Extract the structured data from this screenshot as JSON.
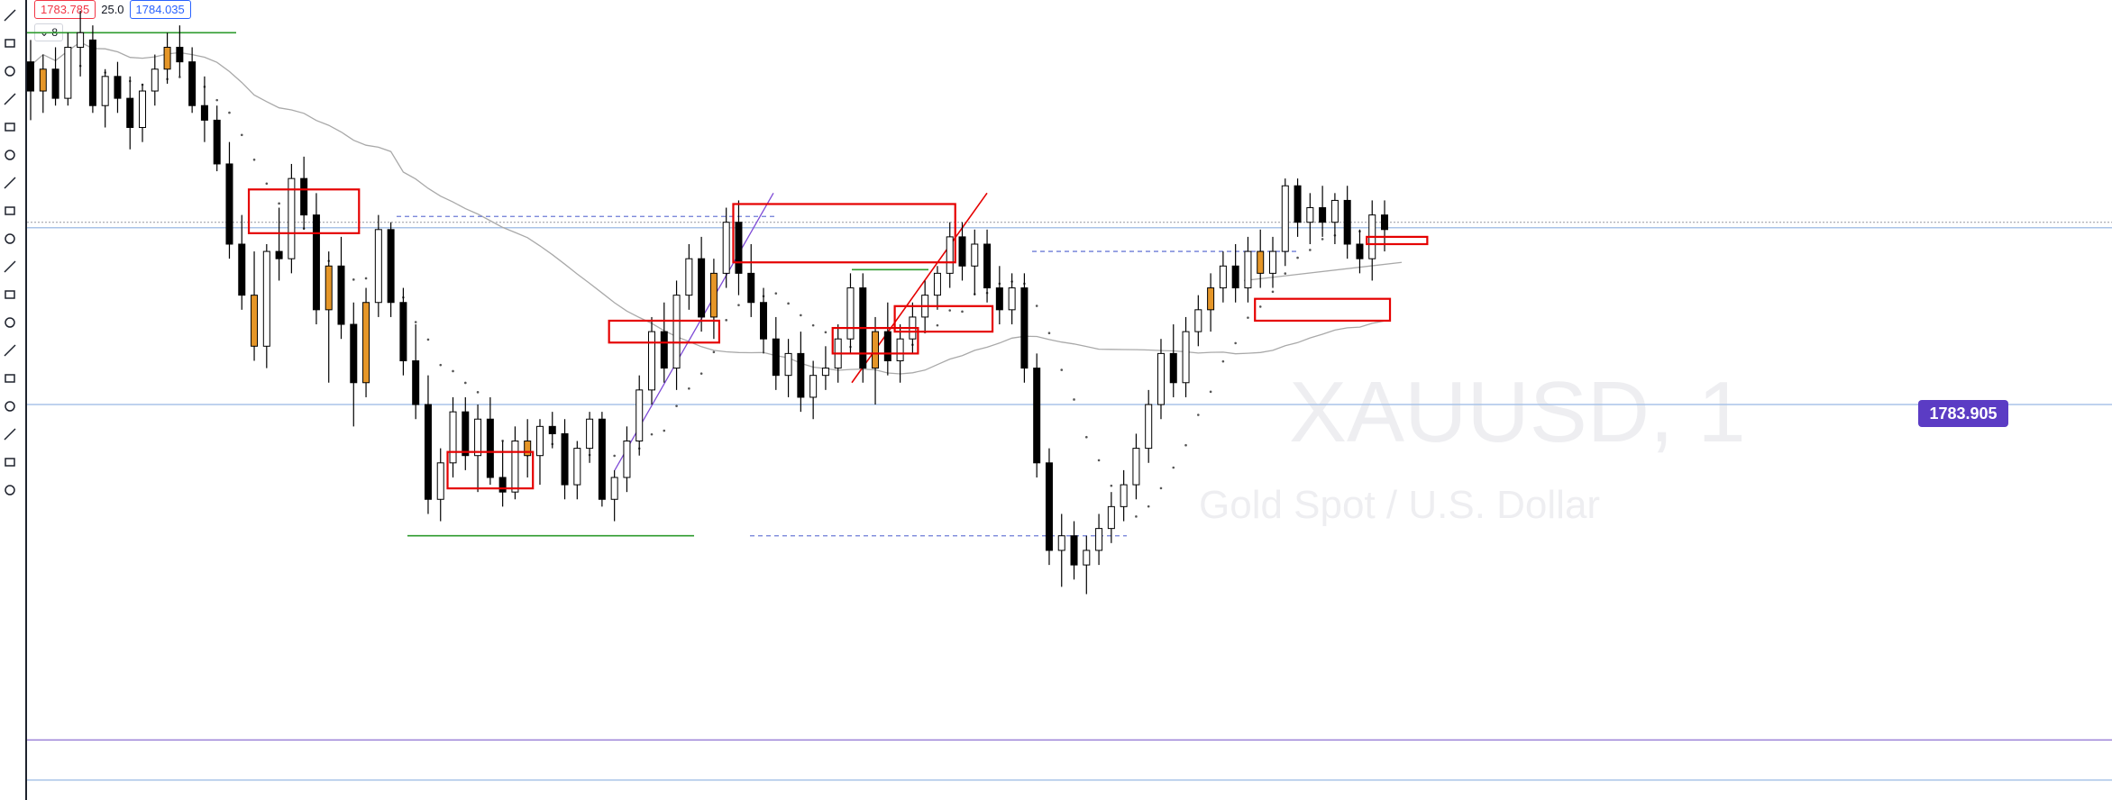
{
  "header": {
    "bid": "1783.785",
    "spread": "25.0",
    "ask": "1784.035",
    "collapse_label": "⌄ 8"
  },
  "toolbar": {
    "tools": [
      "crosshair-icon",
      "trend-line-icon",
      "fib-icon",
      "brush-icon",
      "arrow-icon",
      "rectangle-icon",
      "pen-icon",
      "text-icon",
      "pattern-icon",
      "prediction-icon",
      "ruler-icon",
      "zoom-icon",
      "magnet-icon",
      "lock-drawing-icon",
      "lock-icon",
      "eye-icon",
      "link-icon",
      "trash-icon"
    ]
  },
  "watermark": {
    "symbol": "XAUUSD, 1",
    "description": "Gold Spot / U.S. Dollar"
  },
  "colors": {
    "up_candle": "#ffffff",
    "down_candle": "#000000",
    "highlight_candle": "#e59628",
    "zone": "#e50000",
    "support_line": "#2e9b2e",
    "ma_line": "#a9a9a9",
    "level_blue": "#aac4e8",
    "level_purple": "#9c82d8",
    "price_tag": "#5b3cc4"
  },
  "chart_data": {
    "type": "candlestick",
    "symbol": "XAUUSD",
    "timeframe": "1",
    "last_price": "1783.905",
    "ylim": [
      1776.35,
      1786.0
    ],
    "levels": [
      {
        "name": "resistance",
        "value": 1784.0
      },
      {
        "name": "support-1",
        "value": 1781.5
      },
      {
        "name": "support-2",
        "value": 1776.9
      },
      {
        "name": "support-3",
        "value": 1776.35
      }
    ],
    "candles": [
      {
        "o": 1786.2,
        "h": 1786.5,
        "l": 1785.4,
        "c": 1785.8
      },
      {
        "o": 1785.8,
        "h": 1786.3,
        "l": 1785.5,
        "c": 1786.1
      },
      {
        "o": 1786.1,
        "h": 1786.4,
        "l": 1785.6,
        "c": 1785.7
      },
      {
        "o": 1785.7,
        "h": 1786.6,
        "l": 1785.6,
        "c": 1786.4
      },
      {
        "o": 1786.4,
        "h": 1786.9,
        "l": 1786.0,
        "c": 1786.6
      },
      {
        "o": 1786.5,
        "h": 1786.7,
        "l": 1785.5,
        "c": 1785.6
      },
      {
        "o": 1785.6,
        "h": 1786.1,
        "l": 1785.3,
        "c": 1786.0
      },
      {
        "o": 1786.0,
        "h": 1786.2,
        "l": 1785.5,
        "c": 1785.7
      },
      {
        "o": 1785.7,
        "h": 1786.0,
        "l": 1785.0,
        "c": 1785.3
      },
      {
        "o": 1785.3,
        "h": 1785.9,
        "l": 1785.1,
        "c": 1785.8
      },
      {
        "o": 1785.8,
        "h": 1786.3,
        "l": 1785.6,
        "c": 1786.1
      },
      {
        "o": 1786.1,
        "h": 1786.6,
        "l": 1785.9,
        "c": 1786.4
      },
      {
        "o": 1786.4,
        "h": 1786.7,
        "l": 1786.0,
        "c": 1786.2
      },
      {
        "o": 1786.2,
        "h": 1786.4,
        "l": 1785.5,
        "c": 1785.6
      },
      {
        "o": 1785.6,
        "h": 1786.0,
        "l": 1785.1,
        "c": 1785.4
      },
      {
        "o": 1785.4,
        "h": 1785.6,
        "l": 1784.7,
        "c": 1784.8
      },
      {
        "o": 1784.8,
        "h": 1785.1,
        "l": 1783.5,
        "c": 1783.7
      },
      {
        "o": 1783.7,
        "h": 1784.1,
        "l": 1782.8,
        "c": 1783.0
      },
      {
        "o": 1783.0,
        "h": 1783.6,
        "l": 1782.1,
        "c": 1782.3
      },
      {
        "o": 1782.3,
        "h": 1783.7,
        "l": 1782.0,
        "c": 1783.6
      },
      {
        "o": 1783.6,
        "h": 1784.2,
        "l": 1783.2,
        "c": 1783.5
      },
      {
        "o": 1783.5,
        "h": 1784.8,
        "l": 1783.3,
        "c": 1784.6
      },
      {
        "o": 1784.6,
        "h": 1784.9,
        "l": 1783.9,
        "c": 1784.1
      },
      {
        "o": 1784.1,
        "h": 1784.4,
        "l": 1782.6,
        "c": 1782.8
      },
      {
        "o": 1782.8,
        "h": 1783.6,
        "l": 1781.8,
        "c": 1783.4
      },
      {
        "o": 1783.4,
        "h": 1783.8,
        "l": 1782.4,
        "c": 1782.6
      },
      {
        "o": 1782.6,
        "h": 1782.9,
        "l": 1781.2,
        "c": 1781.8
      },
      {
        "o": 1781.8,
        "h": 1783.1,
        "l": 1781.6,
        "c": 1782.9
      },
      {
        "o": 1782.9,
        "h": 1784.1,
        "l": 1782.7,
        "c": 1783.9
      },
      {
        "o": 1783.9,
        "h": 1784.0,
        "l": 1782.7,
        "c": 1782.9
      },
      {
        "o": 1782.9,
        "h": 1783.1,
        "l": 1781.9,
        "c": 1782.1
      },
      {
        "o": 1782.1,
        "h": 1782.6,
        "l": 1781.3,
        "c": 1781.5
      },
      {
        "o": 1781.5,
        "h": 1781.9,
        "l": 1780.0,
        "c": 1780.2
      },
      {
        "o": 1780.2,
        "h": 1780.9,
        "l": 1779.9,
        "c": 1780.7
      },
      {
        "o": 1780.7,
        "h": 1781.6,
        "l": 1780.5,
        "c": 1781.4
      },
      {
        "o": 1781.4,
        "h": 1781.6,
        "l": 1780.6,
        "c": 1780.8
      },
      {
        "o": 1780.8,
        "h": 1781.5,
        "l": 1780.3,
        "c": 1781.3
      },
      {
        "o": 1781.3,
        "h": 1781.6,
        "l": 1780.4,
        "c": 1780.5
      },
      {
        "o": 1780.5,
        "h": 1781.0,
        "l": 1780.1,
        "c": 1780.3
      },
      {
        "o": 1780.3,
        "h": 1781.2,
        "l": 1780.2,
        "c": 1781.0
      },
      {
        "o": 1781.0,
        "h": 1781.3,
        "l": 1780.5,
        "c": 1780.8
      },
      {
        "o": 1780.8,
        "h": 1781.3,
        "l": 1780.4,
        "c": 1781.2
      },
      {
        "o": 1781.2,
        "h": 1781.4,
        "l": 1780.9,
        "c": 1781.1
      },
      {
        "o": 1781.1,
        "h": 1781.3,
        "l": 1780.2,
        "c": 1780.4
      },
      {
        "o": 1780.4,
        "h": 1781.0,
        "l": 1780.2,
        "c": 1780.9
      },
      {
        "o": 1780.9,
        "h": 1781.4,
        "l": 1780.7,
        "c": 1781.3
      },
      {
        "o": 1781.3,
        "h": 1781.4,
        "l": 1780.1,
        "c": 1780.2
      },
      {
        "o": 1780.2,
        "h": 1780.6,
        "l": 1779.9,
        "c": 1780.5
      },
      {
        "o": 1780.5,
        "h": 1781.2,
        "l": 1780.3,
        "c": 1781.0
      },
      {
        "o": 1781.0,
        "h": 1781.9,
        "l": 1780.8,
        "c": 1781.7
      },
      {
        "o": 1781.7,
        "h": 1782.7,
        "l": 1781.5,
        "c": 1782.5
      },
      {
        "o": 1782.5,
        "h": 1782.9,
        "l": 1781.8,
        "c": 1782.0
      },
      {
        "o": 1782.0,
        "h": 1783.2,
        "l": 1781.7,
        "c": 1783.0
      },
      {
        "o": 1783.0,
        "h": 1783.7,
        "l": 1782.8,
        "c": 1783.5
      },
      {
        "o": 1783.5,
        "h": 1783.8,
        "l": 1782.5,
        "c": 1782.7
      },
      {
        "o": 1782.7,
        "h": 1783.5,
        "l": 1782.4,
        "c": 1783.3
      },
      {
        "o": 1783.3,
        "h": 1784.2,
        "l": 1783.1,
        "c": 1784.0
      },
      {
        "o": 1784.0,
        "h": 1784.3,
        "l": 1783.0,
        "c": 1783.3
      },
      {
        "o": 1783.3,
        "h": 1783.7,
        "l": 1782.7,
        "c": 1782.9
      },
      {
        "o": 1782.9,
        "h": 1783.1,
        "l": 1782.2,
        "c": 1782.4
      },
      {
        "o": 1782.4,
        "h": 1782.7,
        "l": 1781.7,
        "c": 1781.9
      },
      {
        "o": 1781.9,
        "h": 1782.4,
        "l": 1781.6,
        "c": 1782.2
      },
      {
        "o": 1782.2,
        "h": 1782.5,
        "l": 1781.4,
        "c": 1781.6
      },
      {
        "o": 1781.6,
        "h": 1782.1,
        "l": 1781.3,
        "c": 1781.9
      },
      {
        "o": 1781.9,
        "h": 1782.3,
        "l": 1781.7,
        "c": 1782.0
      },
      {
        "o": 1782.0,
        "h": 1782.6,
        "l": 1781.8,
        "c": 1782.4
      },
      {
        "o": 1782.4,
        "h": 1783.3,
        "l": 1782.2,
        "c": 1783.1
      },
      {
        "o": 1783.1,
        "h": 1783.3,
        "l": 1781.8,
        "c": 1782.0
      },
      {
        "o": 1782.0,
        "h": 1782.7,
        "l": 1781.5,
        "c": 1782.5
      },
      {
        "o": 1782.5,
        "h": 1782.9,
        "l": 1781.9,
        "c": 1782.1
      },
      {
        "o": 1782.1,
        "h": 1782.6,
        "l": 1781.8,
        "c": 1782.4
      },
      {
        "o": 1782.4,
        "h": 1782.9,
        "l": 1782.2,
        "c": 1782.7
      },
      {
        "o": 1782.7,
        "h": 1783.2,
        "l": 1782.5,
        "c": 1783.0
      },
      {
        "o": 1783.0,
        "h": 1783.4,
        "l": 1782.8,
        "c": 1783.3
      },
      {
        "o": 1783.3,
        "h": 1784.0,
        "l": 1783.1,
        "c": 1783.8
      },
      {
        "o": 1783.8,
        "h": 1784.0,
        "l": 1783.2,
        "c": 1783.4
      },
      {
        "o": 1783.4,
        "h": 1783.9,
        "l": 1783.0,
        "c": 1783.7
      },
      {
        "o": 1783.7,
        "h": 1783.9,
        "l": 1782.9,
        "c": 1783.1
      },
      {
        "o": 1783.1,
        "h": 1783.4,
        "l": 1782.6,
        "c": 1782.8
      },
      {
        "o": 1782.8,
        "h": 1783.3,
        "l": 1782.6,
        "c": 1783.1
      },
      {
        "o": 1783.1,
        "h": 1783.3,
        "l": 1781.8,
        "c": 1782.0
      },
      {
        "o": 1782.0,
        "h": 1782.2,
        "l": 1780.5,
        "c": 1780.7
      },
      {
        "o": 1780.7,
        "h": 1780.9,
        "l": 1779.3,
        "c": 1779.5
      },
      {
        "o": 1779.5,
        "h": 1780.0,
        "l": 1779.0,
        "c": 1779.7
      },
      {
        "o": 1779.7,
        "h": 1779.9,
        "l": 1779.1,
        "c": 1779.3
      },
      {
        "o": 1779.3,
        "h": 1779.7,
        "l": 1778.9,
        "c": 1779.5
      },
      {
        "o": 1779.5,
        "h": 1780.0,
        "l": 1779.3,
        "c": 1779.8
      },
      {
        "o": 1779.8,
        "h": 1780.3,
        "l": 1779.6,
        "c": 1780.1
      },
      {
        "o": 1780.1,
        "h": 1780.6,
        "l": 1779.9,
        "c": 1780.4
      },
      {
        "o": 1780.4,
        "h": 1781.1,
        "l": 1780.2,
        "c": 1780.9
      },
      {
        "o": 1780.9,
        "h": 1781.7,
        "l": 1780.7,
        "c": 1781.5
      },
      {
        "o": 1781.5,
        "h": 1782.4,
        "l": 1781.3,
        "c": 1782.2
      },
      {
        "o": 1782.2,
        "h": 1782.6,
        "l": 1781.6,
        "c": 1781.8
      },
      {
        "o": 1781.8,
        "h": 1782.7,
        "l": 1781.6,
        "c": 1782.5
      },
      {
        "o": 1782.5,
        "h": 1783.0,
        "l": 1782.3,
        "c": 1782.8
      },
      {
        "o": 1782.8,
        "h": 1783.3,
        "l": 1782.5,
        "c": 1783.1
      },
      {
        "o": 1783.1,
        "h": 1783.6,
        "l": 1782.9,
        "c": 1783.4
      },
      {
        "o": 1783.4,
        "h": 1783.7,
        "l": 1782.9,
        "c": 1783.1
      },
      {
        "o": 1783.1,
        "h": 1783.8,
        "l": 1782.9,
        "c": 1783.6
      },
      {
        "o": 1783.6,
        "h": 1783.9,
        "l": 1783.1,
        "c": 1783.3
      },
      {
        "o": 1783.3,
        "h": 1783.8,
        "l": 1783.1,
        "c": 1783.6
      },
      {
        "o": 1783.6,
        "h": 1784.6,
        "l": 1783.4,
        "c": 1784.5
      },
      {
        "o": 1784.5,
        "h": 1784.6,
        "l": 1783.8,
        "c": 1784.0
      },
      {
        "o": 1784.0,
        "h": 1784.4,
        "l": 1783.7,
        "c": 1784.2
      },
      {
        "o": 1784.2,
        "h": 1784.5,
        "l": 1783.8,
        "c": 1784.0
      },
      {
        "o": 1784.0,
        "h": 1784.4,
        "l": 1783.7,
        "c": 1784.3
      },
      {
        "o": 1784.3,
        "h": 1784.5,
        "l": 1783.5,
        "c": 1783.7
      },
      {
        "o": 1783.7,
        "h": 1783.9,
        "l": 1783.3,
        "c": 1783.5
      },
      {
        "o": 1783.5,
        "h": 1784.3,
        "l": 1783.2,
        "c": 1784.1
      },
      {
        "o": 1784.1,
        "h": 1784.3,
        "l": 1783.6,
        "c": 1783.9
      }
    ],
    "highlight_candles": [
      1,
      11,
      18,
      24,
      27,
      40,
      55,
      68,
      95,
      99
    ],
    "zones": [
      {
        "from": 18,
        "to": 26,
        "top": 1784.45,
        "bottom": 1783.85
      },
      {
        "from": 34,
        "to": 40,
        "top": 1780.85,
        "bottom": 1780.35
      },
      {
        "from": 47,
        "to": 55,
        "top": 1782.65,
        "bottom": 1782.35
      },
      {
        "from": 57,
        "to": 74,
        "top": 1784.25,
        "bottom": 1783.45
      },
      {
        "from": 65,
        "to": 71,
        "top": 1782.55,
        "bottom": 1782.2
      },
      {
        "from": 70,
        "to": 77,
        "top": 1782.85,
        "bottom": 1782.5
      },
      {
        "from": 99,
        "to": 109,
        "top": 1782.95,
        "bottom": 1782.65
      },
      {
        "from": 108,
        "to": 112,
        "top": 1783.8,
        "bottom": 1783.7
      }
    ]
  }
}
